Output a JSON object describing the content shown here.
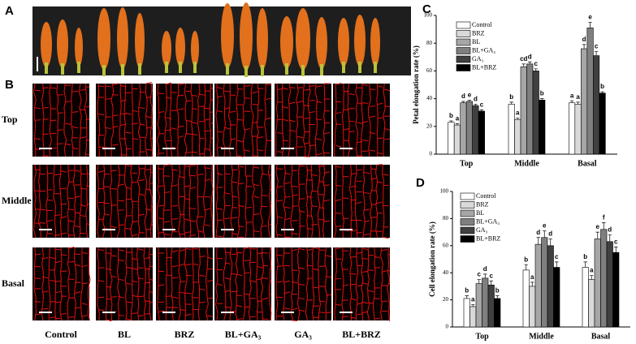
{
  "panels": {
    "a": "A",
    "b": "B"
  },
  "row_labels": [
    "Top",
    "Middle",
    "Basal"
  ],
  "column_labels": [
    "Control",
    "BL",
    "BRZ",
    "BL+GA₃",
    "GA₃",
    "BL+BRZ"
  ],
  "chart_data": [
    {
      "type": "bar",
      "panel": "C",
      "y_label": "Petal elongation rate (%)",
      "categories": [
        "Top",
        "Middle",
        "Basal"
      ],
      "ylim": [
        0,
        100
      ],
      "yticks": [
        0,
        20,
        40,
        60,
        80,
        100
      ],
      "series": [
        {
          "name": "Control",
          "color": "#ffffff",
          "values": [
            23,
            36,
            37
          ],
          "errors": [
            1,
            1.5,
            1.5
          ],
          "letters": [
            "b",
            "b",
            "a"
          ]
        },
        {
          "name": "BRZ",
          "color": "#d9d9d9",
          "values": [
            21,
            25,
            36
          ],
          "errors": [
            1,
            1,
            1.5
          ],
          "letters": [
            "a",
            "a",
            "a"
          ]
        },
        {
          "name": "BL",
          "color": "#a6a6a6",
          "values": [
            37,
            63,
            76
          ],
          "errors": [
            1,
            2,
            3
          ],
          "letters": [
            "d",
            "cd",
            "d"
          ]
        },
        {
          "name": "BL+GA₃",
          "color": "#7f7f7f",
          "values": [
            38,
            65,
            91
          ],
          "errors": [
            1,
            1.5,
            4
          ],
          "letters": [
            "e",
            "d",
            "e"
          ]
        },
        {
          "name": "GA₃",
          "color": "#404040",
          "values": [
            35,
            60,
            71
          ],
          "errors": [
            1,
            1.5,
            3
          ],
          "letters": [
            "d",
            "c",
            "c"
          ]
        },
        {
          "name": "BL+BRZ",
          "color": "#000000",
          "values": [
            31,
            39,
            44
          ],
          "errors": [
            1,
            1,
            1
          ],
          "letters": [
            "c",
            "b",
            "b"
          ]
        }
      ]
    },
    {
      "type": "bar",
      "panel": "D",
      "y_label": "Cell elongation rate (%)",
      "categories": [
        "Top",
        "Middle",
        "Basal"
      ],
      "ylim": [
        0,
        100
      ],
      "yticks": [
        0,
        20,
        40,
        60,
        80,
        100
      ],
      "series": [
        {
          "name": "Control",
          "color": "#ffffff",
          "values": [
            21,
            42,
            44
          ],
          "errors": [
            2,
            4,
            4
          ],
          "letters": [
            "b",
            "b",
            "b"
          ]
        },
        {
          "name": "BRZ",
          "color": "#d9d9d9",
          "values": [
            15,
            30,
            35
          ],
          "errors": [
            1.5,
            3,
            3
          ],
          "letters": [
            "a",
            "a",
            "a"
          ]
        },
        {
          "name": "BL",
          "color": "#a6a6a6",
          "values": [
            32,
            61,
            65
          ],
          "errors": [
            3,
            5,
            5
          ],
          "letters": [
            "c",
            "d",
            "e"
          ]
        },
        {
          "name": "BL+GA₃",
          "color": "#7f7f7f",
          "values": [
            36,
            66,
            72
          ],
          "errors": [
            3,
            5,
            5
          ],
          "letters": [
            "d",
            "e",
            "f"
          ]
        },
        {
          "name": "GA₃",
          "color": "#404040",
          "values": [
            31,
            60,
            63
          ],
          "errors": [
            3,
            5,
            5
          ],
          "letters": [
            "c",
            "d",
            "d"
          ]
        },
        {
          "name": "BL+BRZ",
          "color": "#000000",
          "values": [
            21,
            44,
            55
          ],
          "errors": [
            2,
            4,
            4
          ],
          "letters": [
            "b",
            "c",
            "c"
          ]
        }
      ]
    }
  ]
}
